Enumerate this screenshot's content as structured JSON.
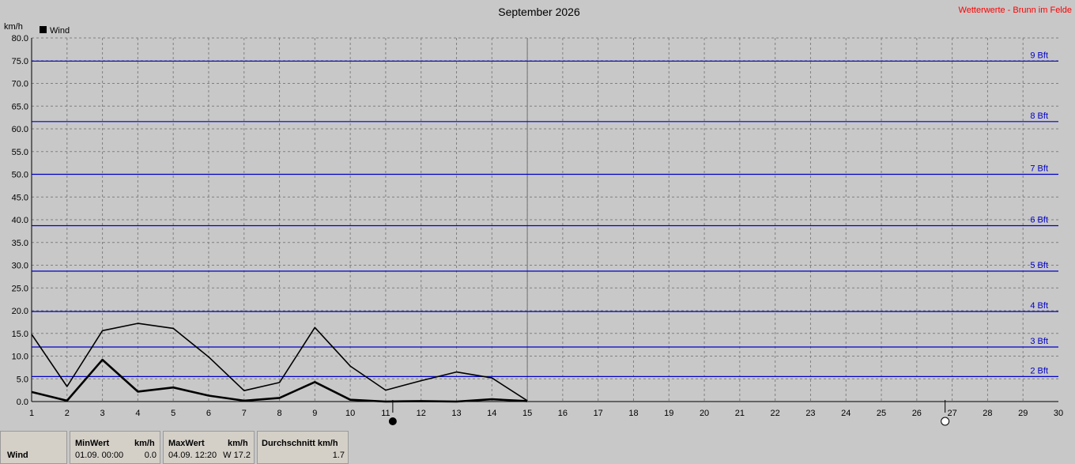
{
  "title": "September 2026",
  "source_label": "Wetterwerte - Brunn im Felde",
  "unit_label": "km/h",
  "colors": {
    "background": "#c8c8c8",
    "beaufort_line": "#0000c8",
    "source_label": "#ff0000",
    "series": "#000000",
    "grid": "#808080"
  },
  "chart_data": {
    "type": "line",
    "title": "September 2026",
    "ylabel": "km/h",
    "ylim": [
      0,
      80
    ],
    "yticks": [
      "0.0",
      "5.0",
      "10.0",
      "15.0",
      "20.0",
      "25.0",
      "30.0",
      "35.0",
      "40.0",
      "45.0",
      "50.0",
      "55.0",
      "60.0",
      "65.0",
      "70.0",
      "75.0",
      "80.0"
    ],
    "xlim": [
      1,
      30
    ],
    "xticks": [
      "1",
      "2",
      "3",
      "4",
      "5",
      "6",
      "7",
      "8",
      "9",
      "10",
      "11",
      "12",
      "13",
      "14",
      "15",
      "16",
      "17",
      "18",
      "19",
      "20",
      "21",
      "22",
      "23",
      "24",
      "25",
      "26",
      "27",
      "28",
      "29",
      "30"
    ],
    "grid": true,
    "legend": {
      "position": "top-left",
      "entries": [
        "Wind"
      ]
    },
    "series": [
      {
        "name": "Wind",
        "kind": "max",
        "x": [
          1,
          2,
          3,
          4,
          5,
          6,
          7,
          8,
          9,
          10,
          11,
          12,
          13,
          14,
          15
        ],
        "values": [
          14.8,
          3.3,
          15.6,
          17.2,
          16.1,
          9.8,
          2.4,
          4.2,
          16.3,
          7.8,
          2.5,
          4.6,
          6.5,
          5.2,
          0.2
        ]
      },
      {
        "name": "Wind",
        "kind": "avg",
        "x": [
          1,
          2,
          3,
          4,
          5,
          6,
          7,
          8,
          9,
          10,
          11,
          12,
          13,
          14,
          15
        ],
        "values": [
          2.1,
          0.2,
          9.2,
          2.2,
          3.1,
          1.3,
          0.2,
          0.8,
          4.3,
          0.4,
          0.0,
          0.1,
          0.0,
          0.5,
          0.1
        ]
      }
    ],
    "reference_lines": [
      {
        "label": "2 Bft",
        "value": 5.5
      },
      {
        "label": "3 Bft",
        "value": 12.0
      },
      {
        "label": "4 Bft",
        "value": 19.8
      },
      {
        "label": "5 Bft",
        "value": 28.7
      },
      {
        "label": "6 Bft",
        "value": 38.7
      },
      {
        "label": "7 Bft",
        "value": 50.0
      },
      {
        "label": "8 Bft",
        "value": 61.6
      },
      {
        "label": "9 Bft",
        "value": 74.9
      }
    ],
    "current_day_marker": 15,
    "moon_phases": [
      {
        "day": 11.2,
        "phase": "new-moon"
      },
      {
        "day": 26.8,
        "phase": "full-moon"
      }
    ]
  },
  "stats": {
    "row_label": "Wind",
    "min_header": "MinWert",
    "min_unit": "km/h",
    "min_date": "01.09.  00:00",
    "min_value": "0.0",
    "max_header": "MaxWert",
    "max_unit": "km/h",
    "max_date": "04.09.  12:20",
    "max_value": "W 17.2",
    "avg_header": "Durchschnitt km/h",
    "avg_value": "1.7"
  }
}
